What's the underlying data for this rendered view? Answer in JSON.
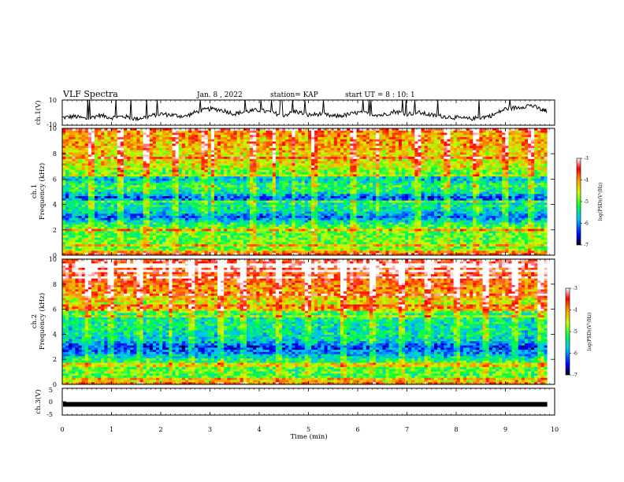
{
  "header": {
    "title": "VLF Spectra",
    "date": "Jan. 8 , 2022",
    "station": "station= KAP",
    "start": "start UT =  8 : 10: 1"
  },
  "chart_data": [
    {
      "type": "line",
      "panel": "ch1-waveform",
      "ylabel": "ch.1(V)",
      "ylim": [
        -10,
        10
      ],
      "yticks": [
        "10",
        "-10"
      ],
      "xlim": [
        0,
        10
      ],
      "trace_color": "#000000",
      "series": [
        {
          "x": [
            0,
            0.25,
            0.5,
            0.75,
            1,
            1.25,
            1.5,
            1.75,
            2,
            2.25,
            2.5,
            2.75,
            3,
            3.25,
            3.5,
            3.75,
            4,
            4.25,
            4.5,
            4.75,
            5,
            5.25,
            5.5,
            5.75,
            6,
            6.25,
            6.5,
            6.75,
            7,
            7.25,
            7.5,
            7.75,
            8,
            8.25,
            8.5,
            8.75,
            9,
            9.25,
            9.5,
            9.75,
            9.85
          ],
          "values": [
            -4,
            -3,
            -5,
            -2,
            -4,
            -3,
            -5,
            -3,
            -1,
            -2,
            -3,
            1,
            3,
            2,
            -1,
            1,
            2,
            0,
            -2,
            1,
            -2,
            -1,
            -3,
            -2,
            0,
            -1,
            -2,
            1,
            -1,
            0,
            -2,
            -3,
            -4,
            -5,
            -4,
            -2,
            3,
            4,
            6,
            2,
            1
          ]
        }
      ]
    },
    {
      "type": "heatmap",
      "panel": "ch1-spectrogram",
      "ylabel": "ch.1\nFrequency (kHz)",
      "ylim": [
        0,
        10
      ],
      "xlim": [
        0,
        9.85
      ],
      "yticks": [
        "0",
        "2",
        "4",
        "6",
        "8",
        "10"
      ],
      "colorbar": {
        "label": "log(PSD)(V²/Hz)",
        "min": -7,
        "max": -3,
        "ticks": [
          "-3",
          "-4",
          "-5",
          "-6",
          "-7"
        ]
      },
      "band_profile": [
        {
          "f": 0.0,
          "v": -3.2
        },
        {
          "f": 0.5,
          "v": -5.0
        },
        {
          "f": 1.0,
          "v": -4.9
        },
        {
          "f": 1.6,
          "v": -5.0
        },
        {
          "f": 2.0,
          "v": -4.8
        },
        {
          "f": 2.5,
          "v": -5.3
        },
        {
          "f": 3.0,
          "v": -6.2
        },
        {
          "f": 3.5,
          "v": -5.5
        },
        {
          "f": 4.0,
          "v": -5.3
        },
        {
          "f": 4.5,
          "v": -6.3
        },
        {
          "f": 5.0,
          "v": -5.4
        },
        {
          "f": 5.5,
          "v": -5.1
        },
        {
          "f": 6.0,
          "v": -5.8
        },
        {
          "f": 6.5,
          "v": -4.9
        },
        {
          "f": 7.0,
          "v": -4.5
        },
        {
          "f": 8.0,
          "v": -4.3
        },
        {
          "f": 9.0,
          "v": -4.1
        },
        {
          "f": 10.0,
          "v": -3.9
        }
      ],
      "burst_times_min": [
        0.6,
        1.2,
        1.7,
        2.3,
        2.9,
        3.05,
        3.9,
        4.3,
        4.7,
        5.1,
        5.9,
        6.4,
        7.2,
        7.8,
        8.4,
        9.0,
        9.5
      ]
    },
    {
      "type": "heatmap",
      "panel": "ch2-spectrogram",
      "ylabel": "ch.2\nFrequency (kHz)",
      "ylim": [
        0,
        10
      ],
      "xlim": [
        0,
        9.85
      ],
      "yticks": [
        "0",
        "2",
        "4",
        "6",
        "8",
        "10"
      ],
      "colorbar": {
        "label": "log(PSD)(V²/Hz)",
        "min": -7,
        "max": -3,
        "ticks": [
          "-3",
          "-4",
          "-5",
          "-6",
          "-7"
        ]
      },
      "band_profile": [
        {
          "f": 0.0,
          "v": -3.6
        },
        {
          "f": 0.5,
          "v": -5.1
        },
        {
          "f": 1.0,
          "v": -5.0
        },
        {
          "f": 1.6,
          "v": -5.1
        },
        {
          "f": 2.0,
          "v": -5.3
        },
        {
          "f": 2.5,
          "v": -6.0
        },
        {
          "f": 3.0,
          "v": -6.3
        },
        {
          "f": 3.5,
          "v": -5.6
        },
        {
          "f": 4.0,
          "v": -5.5
        },
        {
          "f": 5.0,
          "v": -5.4
        },
        {
          "f": 5.5,
          "v": -5.3
        },
        {
          "f": 6.0,
          "v": -4.8
        },
        {
          "f": 7.0,
          "v": -4.2
        },
        {
          "f": 8.0,
          "v": -3.8
        },
        {
          "f": 9.0,
          "v": -3.5
        },
        {
          "f": 10.0,
          "v": -3.4
        }
      ],
      "burst_times_min": [
        0.5,
        1.0,
        1.6,
        2.2,
        2.6,
        3.2,
        3.7,
        4.4,
        5.0,
        5.7,
        6.3,
        6.9,
        7.4,
        8.0,
        8.6,
        9.2,
        9.7
      ]
    },
    {
      "type": "line",
      "panel": "ch3-waveform",
      "ylabel": "ch.3(V)",
      "ylim": [
        -5,
        5
      ],
      "yticks": [
        "5",
        "0",
        "-5"
      ],
      "xlim": [
        0,
        10
      ],
      "trace_level_v": -1,
      "trace_color": "#000000"
    }
  ],
  "x_axis": {
    "label": "Time (min)",
    "ticks": [
      "0",
      "1",
      "2",
      "3",
      "4",
      "5",
      "6",
      "7",
      "8",
      "9",
      "10"
    ]
  }
}
